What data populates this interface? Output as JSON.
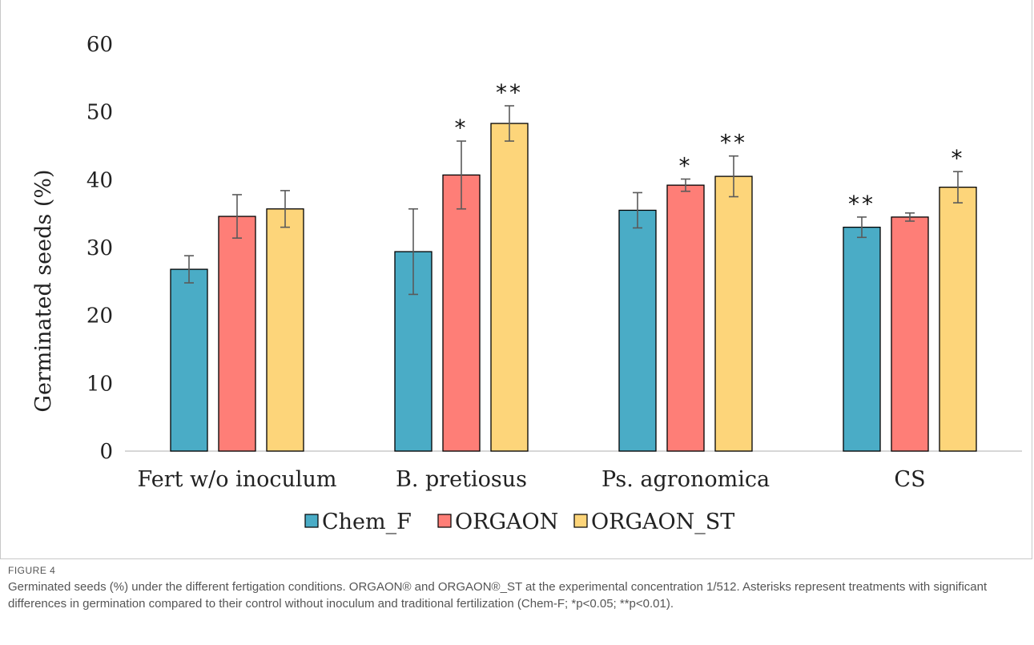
{
  "chart_data": {
    "type": "bar",
    "ylabel": "Germinated seeds (%)",
    "ylim": [
      0,
      60
    ],
    "yticks": [
      "0",
      "10",
      "20",
      "30",
      "40",
      "50",
      "60"
    ],
    "categories": [
      "Fert w/o inoculum",
      "B. pretiosus",
      "Ps. agronomica",
      "CS"
    ],
    "series": [
      {
        "name": "Chem_F",
        "color": "#4aacc6",
        "values": [
          26.8,
          29.4,
          35.5,
          33.0
        ],
        "errors": [
          2.0,
          6.3,
          2.6,
          1.5
        ],
        "marks": [
          "",
          "",
          "",
          "**"
        ]
      },
      {
        "name": "ORGAON",
        "color": "#fe7e77",
        "values": [
          34.6,
          40.7,
          39.2,
          34.5
        ],
        "errors": [
          3.2,
          5.0,
          0.9,
          0.6
        ],
        "marks": [
          "",
          "*",
          "*",
          ""
        ]
      },
      {
        "name": "ORGAON_ST",
        "color": "#fdd57a",
        "values": [
          35.7,
          48.3,
          40.5,
          38.9
        ],
        "errors": [
          2.7,
          2.6,
          3.0,
          2.3
        ],
        "marks": [
          "",
          "**",
          "**",
          "*"
        ]
      }
    ],
    "legend_position": "bottom",
    "grid": false
  },
  "caption": {
    "label": "FIGURE 4",
    "text": "Germinated seeds (%) under the different fertigation conditions. ORGAON® and ORGAON®_ST at the experimental concentration 1/512. Asterisks represent treatments with significant differences in germination compared to their control without inoculum and traditional fertilization (Chem-F; *p<0.05; **p<0.01)."
  }
}
